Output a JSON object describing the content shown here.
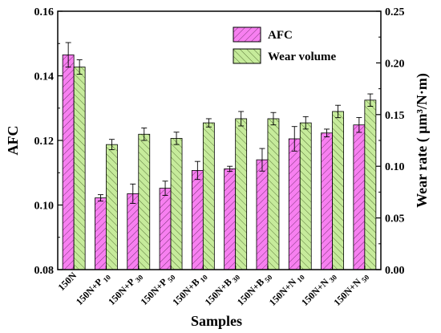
{
  "chart_data": {
    "type": "bar",
    "xlabel": "Samples",
    "ylabel_left": "AFC",
    "ylabel_right": "Wear rate ( μm³/N·m)",
    "ylim_left": [
      0.08,
      0.16
    ],
    "yticks_left": [
      "0.08",
      "0.10",
      "0.12",
      "0.14",
      "0.16"
    ],
    "ylim_right": [
      0.0,
      0.25
    ],
    "yticks_right": [
      "0.00",
      "0.05",
      "0.10",
      "0.15",
      "0.20",
      "0.25"
    ],
    "categories": [
      {
        "base": "150N",
        "sub": ""
      },
      {
        "base": "150N+P",
        "sub": "10"
      },
      {
        "base": "150N+P",
        "sub": "30"
      },
      {
        "base": "150N+P",
        "sub": "50"
      },
      {
        "base": "150N+B",
        "sub": "10"
      },
      {
        "base": "150N+B",
        "sub": "30"
      },
      {
        "base": "150N+B",
        "sub": "50"
      },
      {
        "base": "150N+N",
        "sub": "10"
      },
      {
        "base": "150N+N",
        "sub": "30"
      },
      {
        "base": "150N+N",
        "sub": "50"
      }
    ],
    "series": [
      {
        "name": "AFC",
        "axis": "left",
        "color": "#f77ff0",
        "values": [
          0.1465,
          0.1022,
          0.1035,
          0.1052,
          0.1107,
          0.1112,
          0.114,
          0.1205,
          0.1223,
          0.1248
        ],
        "errors": [
          0.0038,
          0.001,
          0.003,
          0.0022,
          0.0028,
          0.0008,
          0.0035,
          0.0038,
          0.0012,
          0.0023
        ]
      },
      {
        "name": "Wear volume",
        "axis": "right",
        "color": "#c6eb9b",
        "values": [
          0.196,
          0.121,
          0.131,
          0.127,
          0.142,
          0.146,
          0.146,
          0.142,
          0.153,
          0.164
        ],
        "errors": [
          0.007,
          0.005,
          0.006,
          0.006,
          0.004,
          0.007,
          0.006,
          0.006,
          0.006,
          0.006
        ]
      }
    ],
    "legend": {
      "position": "top-right"
    }
  }
}
